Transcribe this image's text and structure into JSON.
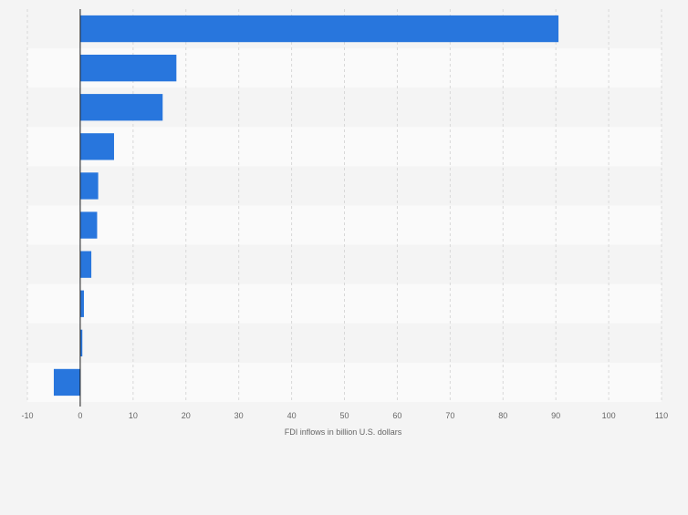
{
  "chart_data": {
    "type": "bar",
    "orientation": "horizontal",
    "title": "",
    "categories": [
      "",
      "",
      "",
      "",
      "",
      "",
      "",
      "",
      "",
      ""
    ],
    "values": [
      90.5,
      18.2,
      15.6,
      6.4,
      3.4,
      3.2,
      2.1,
      0.7,
      0.4,
      -5.0
    ],
    "xlabel": "FDI inflows in billion U.S. dollars",
    "ylabel": "",
    "xlim": [
      -10,
      110
    ],
    "xticks": [
      "-10",
      "0",
      "10",
      "20",
      "30",
      "40",
      "50",
      "60",
      "70",
      "80",
      "90",
      "100",
      "110"
    ],
    "grid": true,
    "legend": "none"
  },
  "colors": {
    "bar": "#2876dd",
    "page_background": "#f4f4f4",
    "band_light": "#fafafa",
    "band_dark": "#f4f4f4",
    "gridline": "#d8d8d8",
    "axis": "#1a1a1a",
    "tick_text": "#666666"
  }
}
